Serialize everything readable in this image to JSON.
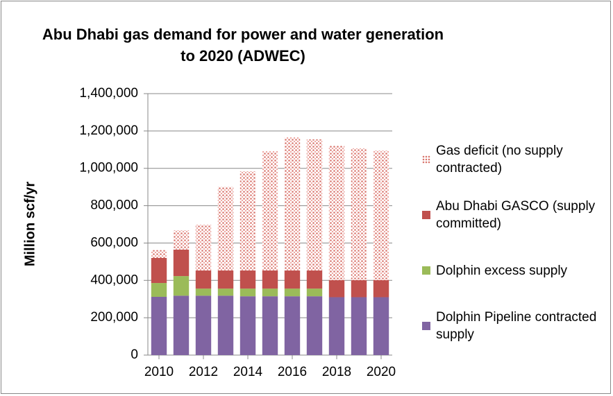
{
  "chart_data": {
    "type": "stacked_bar",
    "title": "Abu Dhabi gas demand for power and water generation to 2020 (ADWEC)",
    "y_label": "Million scf/yr",
    "x": [
      2010,
      2011,
      2012,
      2013,
      2014,
      2015,
      2016,
      2017,
      2018,
      2019,
      2020
    ],
    "xlim": [
      2009.5,
      2020.5
    ],
    "xticks": [
      2010,
      2012,
      2014,
      2016,
      2018,
      2020
    ],
    "ylim": [
      0,
      1400000
    ],
    "yticks": [
      0,
      {
        "value": 200000,
        "label": "200,000"
      },
      {
        "value": 400000,
        "label": "400,000"
      },
      {
        "value": 600000,
        "label": "600,000"
      },
      {
        "value": 800000,
        "label": "800,000"
      },
      {
        "value": 1000000,
        "label": "1,000,000"
      },
      {
        "value": 1200000,
        "label": "1,200,000"
      },
      {
        "value": 1400000,
        "label": "1,400,000"
      }
    ],
    "grid": true,
    "legend": "right",
    "series": [
      {
        "name": "Dolphin Pipeline contracted supply",
        "color": "#8064a2",
        "values": [
          312000,
          318000,
          318000,
          318000,
          315000,
          315000,
          315000,
          315000,
          310000,
          310000,
          310000
        ]
      },
      {
        "name": "Dolphin excess supply",
        "color": "#9bbb59",
        "values": [
          74000,
          105000,
          38000,
          38000,
          41000,
          41000,
          41000,
          41000,
          0,
          0,
          0
        ]
      },
      {
        "name": "Abu Dhabi GASCO (supply committed)",
        "color": "#c0504d",
        "values": [
          134000,
          142000,
          97000,
          97000,
          97000,
          97000,
          97000,
          97000,
          91000,
          91000,
          91000
        ]
      },
      {
        "name": "Gas deficit (no supply contracted)",
        "color": "#f2c4c0",
        "pattern": "dots",
        "values": [
          42000,
          103000,
          245000,
          447000,
          531000,
          639000,
          713000,
          702000,
          720000,
          706000,
          694000
        ]
      }
    ]
  }
}
